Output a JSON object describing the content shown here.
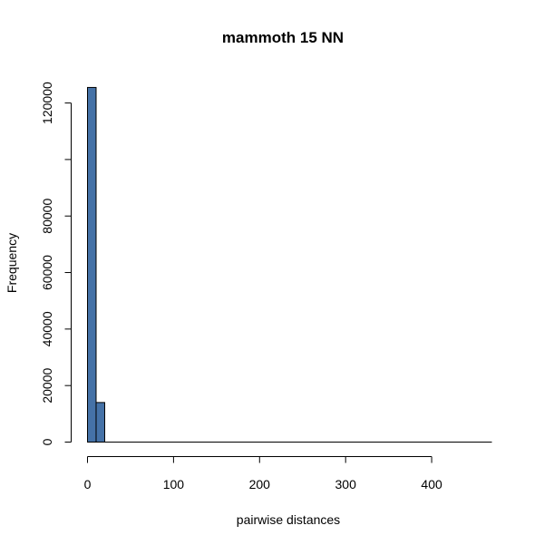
{
  "chart_data": {
    "type": "bar",
    "title": "mammoth 15 NN",
    "xlabel": "pairwise distances",
    "ylabel": "Frequency",
    "x_ticks": [
      0,
      100,
      200,
      300,
      400
    ],
    "y_ticks": [
      0,
      20000,
      40000,
      60000,
      80000,
      100000,
      120000
    ],
    "y_tick_labels": [
      "0",
      "20000",
      "40000",
      "60000",
      "80000",
      "",
      "120000"
    ],
    "xlim": [
      0,
      470
    ],
    "ylim": [
      0,
      126000
    ],
    "bin_width": 10,
    "bins": [
      {
        "x0": 0,
        "x1": 10,
        "count": 125500
      },
      {
        "x0": 10,
        "x1": 20,
        "count": 14000
      }
    ],
    "bar_color": "#4572A7",
    "bar_stroke": "#000000",
    "grid": false,
    "legend": "none"
  }
}
